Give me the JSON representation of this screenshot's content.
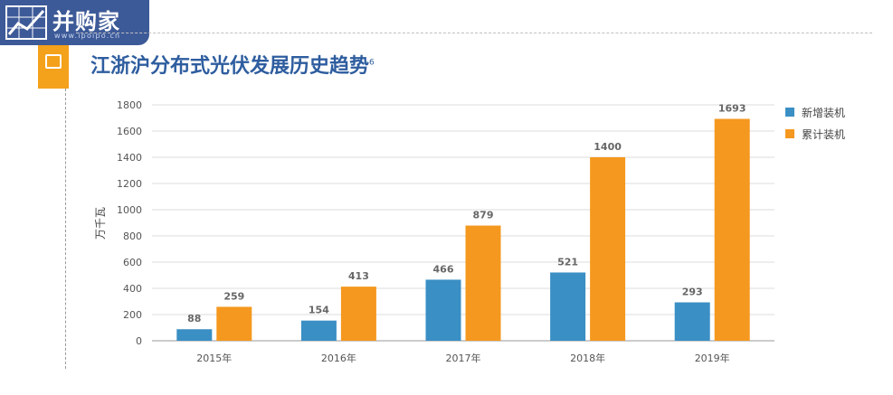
{
  "logo": {
    "text": "并购家",
    "url": "www.ipoipo.cn"
  },
  "title": "江浙沪分布式光伏发展历史趋势",
  "title_sup": "6",
  "chart_data": {
    "type": "bar",
    "ylabel": "万千瓦",
    "xlabel": "",
    "ylim": [
      0,
      1800
    ],
    "yticks": [
      0,
      200,
      400,
      600,
      800,
      1000,
      1200,
      1400,
      1600,
      1800
    ],
    "grid": true,
    "legend_position": "right",
    "categories": [
      "2015年",
      "2016年",
      "2017年",
      "2018年",
      "2019年"
    ],
    "series": [
      {
        "name": "新增装机",
        "color": "#3a8fc4",
        "values": [
          88,
          154,
          466,
          521,
          293
        ]
      },
      {
        "name": "累计装机",
        "color": "#f5981f",
        "values": [
          259,
          413,
          879,
          1400,
          1693
        ]
      }
    ]
  },
  "colors": {
    "accent": "#f4a11b",
    "title": "#2e5d9f",
    "logo_bg": "#3d5a98"
  }
}
